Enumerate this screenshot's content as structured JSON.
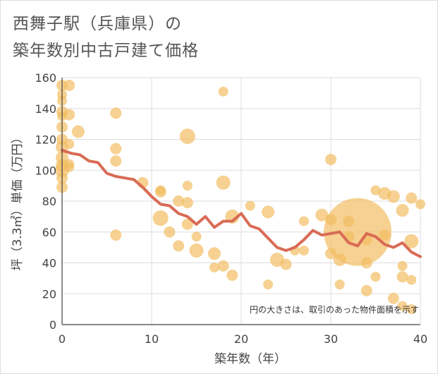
{
  "chart_data": {
    "type": "scatter",
    "title_lines": [
      "西舞子駅（兵庫県）の",
      "築年数別中古戸建て価格"
    ],
    "xlabel": "築年数（年）",
    "ylabel": "坪（3.3㎡）単価（万円）",
    "note": "円の大きさは、取引のあった物件面積を示す",
    "xlim": [
      0,
      40
    ],
    "ylim": [
      0,
      160
    ],
    "x_ticks": [
      0,
      10,
      20,
      30,
      40
    ],
    "y_ticks": [
      0,
      20,
      40,
      60,
      80,
      100,
      120,
      140,
      160
    ],
    "grid": true,
    "colors": {
      "bubble": "#f2bd63",
      "bubble_opacity": 0.7,
      "trend": "#d96b55",
      "grid": "#dddddd",
      "axis": "#444444"
    },
    "bubbles": [
      {
        "x": 0,
        "y": 155,
        "s": 8
      },
      {
        "x": 0,
        "y": 149,
        "s": 7
      },
      {
        "x": 0,
        "y": 145,
        "s": 7
      },
      {
        "x": 0,
        "y": 138,
        "s": 8
      },
      {
        "x": 0,
        "y": 135,
        "s": 7
      },
      {
        "x": 0,
        "y": 128,
        "s": 8
      },
      {
        "x": 0,
        "y": 120,
        "s": 8
      },
      {
        "x": 0,
        "y": 115,
        "s": 9
      },
      {
        "x": 0,
        "y": 108,
        "s": 9
      },
      {
        "x": 0,
        "y": 103,
        "s": 9
      },
      {
        "x": 0,
        "y": 100,
        "s": 10
      },
      {
        "x": 0,
        "y": 95,
        "s": 8
      },
      {
        "x": 0,
        "y": 89,
        "s": 8
      },
      {
        "x": 0.8,
        "y": 155,
        "s": 8
      },
      {
        "x": 0.8,
        "y": 136,
        "s": 8
      },
      {
        "x": 0.8,
        "y": 117,
        "s": 7
      },
      {
        "x": 0.8,
        "y": 104,
        "s": 7
      },
      {
        "x": 0.8,
        "y": 102,
        "s": 7
      },
      {
        "x": 1.8,
        "y": 125,
        "s": 9
      },
      {
        "x": 6,
        "y": 137,
        "s": 8
      },
      {
        "x": 6,
        "y": 114,
        "s": 8
      },
      {
        "x": 6,
        "y": 106,
        "s": 8
      },
      {
        "x": 6,
        "y": 58,
        "s": 8
      },
      {
        "x": 9,
        "y": 92,
        "s": 8
      },
      {
        "x": 11,
        "y": 87,
        "s": 7
      },
      {
        "x": 11,
        "y": 86,
        "s": 8
      },
      {
        "x": 11,
        "y": 69,
        "s": 11
      },
      {
        "x": 12,
        "y": 60,
        "s": 8
      },
      {
        "x": 13,
        "y": 80,
        "s": 8
      },
      {
        "x": 13,
        "y": 51,
        "s": 8
      },
      {
        "x": 14,
        "y": 122,
        "s": 11
      },
      {
        "x": 14,
        "y": 90,
        "s": 7
      },
      {
        "x": 14,
        "y": 79,
        "s": 8
      },
      {
        "x": 14,
        "y": 65,
        "s": 8
      },
      {
        "x": 15,
        "y": 57,
        "s": 7
      },
      {
        "x": 15,
        "y": 48,
        "s": 10
      },
      {
        "x": 17,
        "y": 46,
        "s": 9
      },
      {
        "x": 17,
        "y": 37,
        "s": 7
      },
      {
        "x": 18,
        "y": 151,
        "s": 7
      },
      {
        "x": 18,
        "y": 92,
        "s": 10
      },
      {
        "x": 18,
        "y": 38,
        "s": 8
      },
      {
        "x": 19,
        "y": 70,
        "s": 10
      },
      {
        "x": 19,
        "y": 32,
        "s": 8
      },
      {
        "x": 21,
        "y": 77,
        "s": 7
      },
      {
        "x": 23,
        "y": 73,
        "s": 9
      },
      {
        "x": 23,
        "y": 26,
        "s": 7
      },
      {
        "x": 24,
        "y": 42,
        "s": 10
      },
      {
        "x": 25,
        "y": 39,
        "s": 8
      },
      {
        "x": 26,
        "y": 48,
        "s": 7
      },
      {
        "x": 27,
        "y": 67,
        "s": 7
      },
      {
        "x": 27,
        "y": 48,
        "s": 7
      },
      {
        "x": 29,
        "y": 71,
        "s": 9
      },
      {
        "x": 30,
        "y": 107,
        "s": 8
      },
      {
        "x": 30,
        "y": 68,
        "s": 8
      },
      {
        "x": 30,
        "y": 46,
        "s": 8
      },
      {
        "x": 31,
        "y": 42,
        "s": 9
      },
      {
        "x": 31,
        "y": 26,
        "s": 7
      },
      {
        "x": 32,
        "y": 67,
        "s": 8
      },
      {
        "x": 32,
        "y": 57,
        "s": 8
      },
      {
        "x": 33,
        "y": 60,
        "s": 48
      },
      {
        "x": 34,
        "y": 55,
        "s": 8
      },
      {
        "x": 34,
        "y": 40,
        "s": 8
      },
      {
        "x": 34,
        "y": 22,
        "s": 8
      },
      {
        "x": 35,
        "y": 87,
        "s": 7
      },
      {
        "x": 35,
        "y": 31,
        "s": 7
      },
      {
        "x": 36,
        "y": 85,
        "s": 9
      },
      {
        "x": 36,
        "y": 58,
        "s": 8
      },
      {
        "x": 37,
        "y": 83,
        "s": 9
      },
      {
        "x": 37,
        "y": 17,
        "s": 8
      },
      {
        "x": 38,
        "y": 74,
        "s": 9
      },
      {
        "x": 38,
        "y": 38,
        "s": 7
      },
      {
        "x": 38,
        "y": 31,
        "s": 8
      },
      {
        "x": 38,
        "y": 12,
        "s": 7
      },
      {
        "x": 39,
        "y": 82,
        "s": 8
      },
      {
        "x": 39,
        "y": 54,
        "s": 10
      },
      {
        "x": 39,
        "y": 29,
        "s": 7
      },
      {
        "x": 39,
        "y": 10,
        "s": 7
      },
      {
        "x": 40,
        "y": 78,
        "s": 7
      }
    ],
    "trend": {
      "x": [
        0,
        1,
        2,
        3,
        4,
        5,
        6,
        7,
        8,
        9,
        10,
        11,
        12,
        13,
        14,
        15,
        16,
        17,
        18,
        19,
        20,
        21,
        22,
        23,
        24,
        25,
        26,
        27,
        28,
        29,
        30,
        31,
        32,
        33,
        34,
        35,
        36,
        37,
        38,
        39,
        40
      ],
      "y": [
        113,
        111,
        110,
        106,
        105,
        98,
        96,
        95,
        94,
        89,
        83,
        78,
        77,
        72,
        70,
        65,
        70,
        63,
        67,
        67,
        72,
        64,
        62,
        56,
        50,
        48,
        50,
        55,
        61,
        58,
        59,
        60,
        53,
        51,
        59,
        57,
        52,
        50,
        53,
        47,
        44
      ]
    }
  }
}
